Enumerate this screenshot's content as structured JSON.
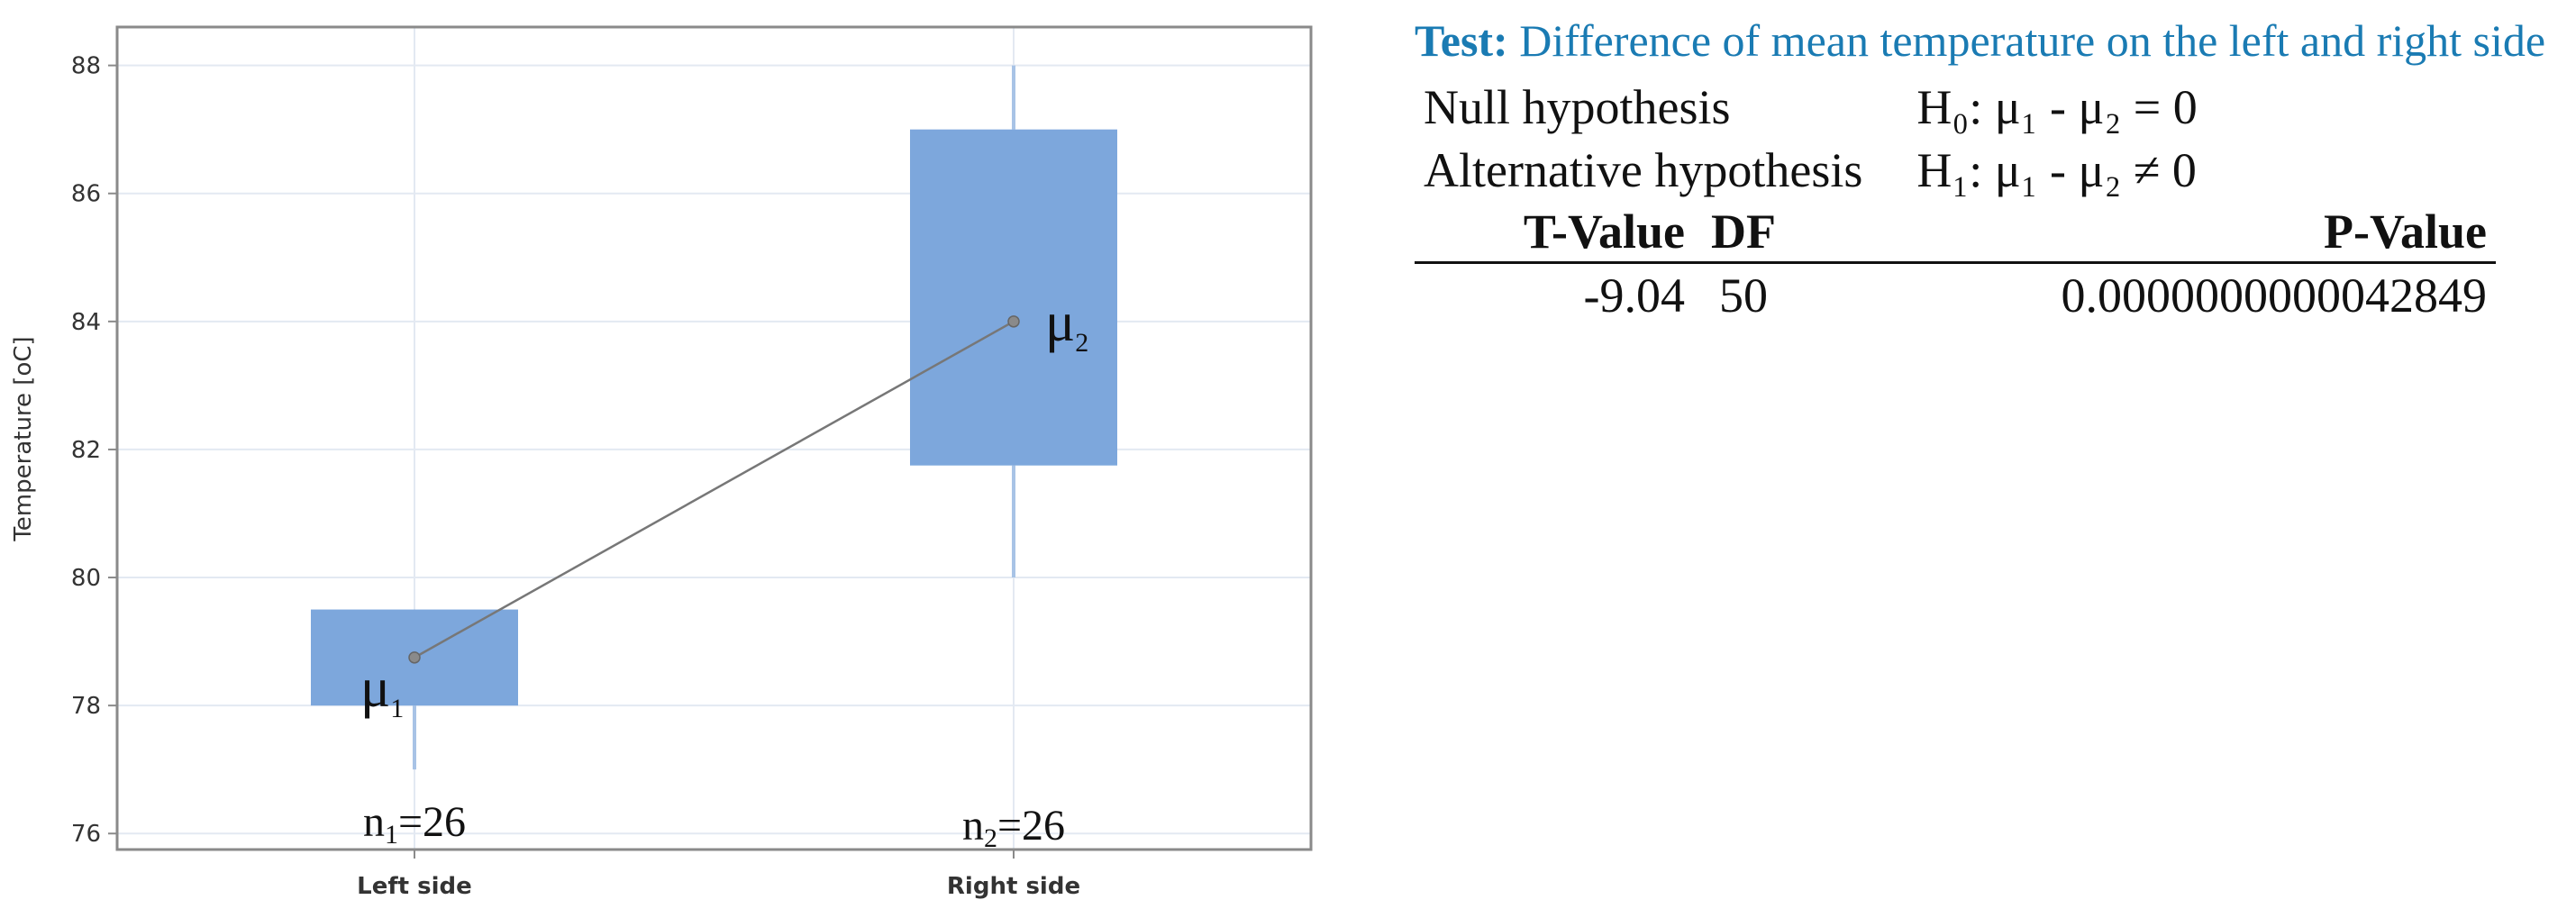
{
  "chart_data": {
    "type": "box",
    "ylabel": "Temperature [oC]",
    "ylim": [
      75.75,
      88.6
    ],
    "yticks": [
      76,
      78,
      80,
      82,
      84,
      86,
      88
    ],
    "categories": [
      "Left side",
      "Right side"
    ],
    "boxes": [
      {
        "category": "Left side",
        "whisker_low": 77.0,
        "q1": 78.0,
        "q3": 79.5,
        "whisker_high": 79.5,
        "mean": 78.75,
        "mean_label": "μ",
        "mean_sub": "1",
        "n_label": "n",
        "n_sub": "1",
        "n_value": "=26"
      },
      {
        "category": "Right side",
        "whisker_low": 80.0,
        "q1": 81.75,
        "q3": 87.0,
        "whisker_high": 88.0,
        "mean": 84.0,
        "mean_label": "μ",
        "mean_sub": "2",
        "n_label": "n",
        "n_sub": "2",
        "n_value": "=26"
      }
    ],
    "grid": true,
    "colors": {
      "box": "#7da7dc",
      "whisker": "#a8c3e6",
      "mean_line": "#777777",
      "grid": "#e3e9f2",
      "frame": "#8a8a8a"
    }
  },
  "test": {
    "heading_bold": "Test:",
    "heading_text": " Difference of mean temperature on the left and right side",
    "null_label": "Null hypothesis",
    "null_expr": "H₀: μ₁ - μ₂ = 0",
    "alt_label": "Alternative hypothesis",
    "alt_expr": "H₁: μ₁ - μ₂ ≠ 0",
    "columns": [
      "T-Value",
      "DF",
      "P-Value"
    ],
    "t_value": "-9.04",
    "df": "50",
    "p_value": "0.0000000000042849"
  }
}
